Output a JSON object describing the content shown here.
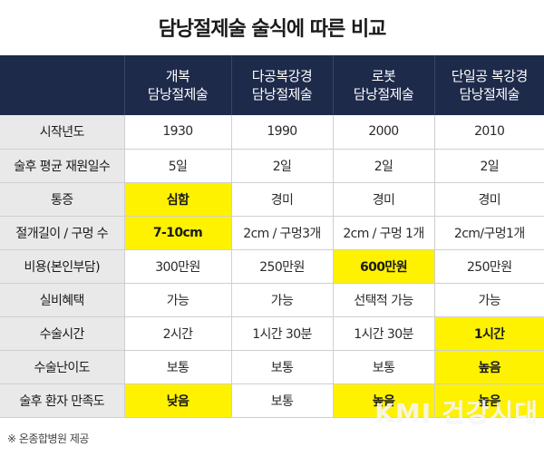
{
  "title": "담낭절제술 술식에 따른 비교",
  "header": {
    "columns": [
      {
        "line1": "",
        "line2": ""
      },
      {
        "line1": "개복",
        "line2": "담낭절제술"
      },
      {
        "line1": "다공복강경",
        "line2": "담낭절제술"
      },
      {
        "line1": "로봇",
        "line2": "담낭절제술"
      },
      {
        "line1": "단일공 복강경",
        "line2": "담낭절제술"
      }
    ]
  },
  "rows": [
    {
      "label": "시작년도",
      "cells": [
        "1930",
        "1990",
        "2000",
        "2010"
      ]
    },
    {
      "label": "술후 평균 재원일수",
      "cells": [
        "5일",
        "2일",
        "2일",
        "2일"
      ]
    },
    {
      "label": "통증",
      "cells": [
        "심함",
        "경미",
        "경미",
        "경미"
      ]
    },
    {
      "label": "절개길이 / 구멍 수",
      "cells": [
        "7-10cm",
        "2cm / 구멍3개",
        "2cm / 구멍 1개",
        "2cm/구멍1개"
      ]
    },
    {
      "label": "비용(본인부담)",
      "cells": [
        "300만원",
        "250만원",
        "600만원",
        "250만원"
      ]
    },
    {
      "label": "실비혜택",
      "cells": [
        "가능",
        "가능",
        "선택적 가능",
        "가능"
      ]
    },
    {
      "label": "수술시간",
      "cells": [
        "2시간",
        "1시간 30분",
        "1시간 30분",
        "1시간"
      ]
    },
    {
      "label": "수술난이도",
      "cells": [
        "보통",
        "보통",
        "보통",
        "높음"
      ]
    },
    {
      "label": "술후 환자 만족도",
      "cells": [
        "낮음",
        "보통",
        "높음",
        "높음"
      ]
    }
  ],
  "highlight_color": "#fff200",
  "highlights": {
    "통증": [
      0
    ],
    "절개길이 / 구멍 수": [
      0
    ],
    "비용(본인부담)": [
      2
    ],
    "수술시간": [
      3
    ],
    "수술난이도": [
      3
    ],
    "술후 환자 만족도": [
      0,
      2,
      3
    ]
  },
  "source": "※ 온종합병원 제공",
  "watermark": "KMI 건강시대"
}
